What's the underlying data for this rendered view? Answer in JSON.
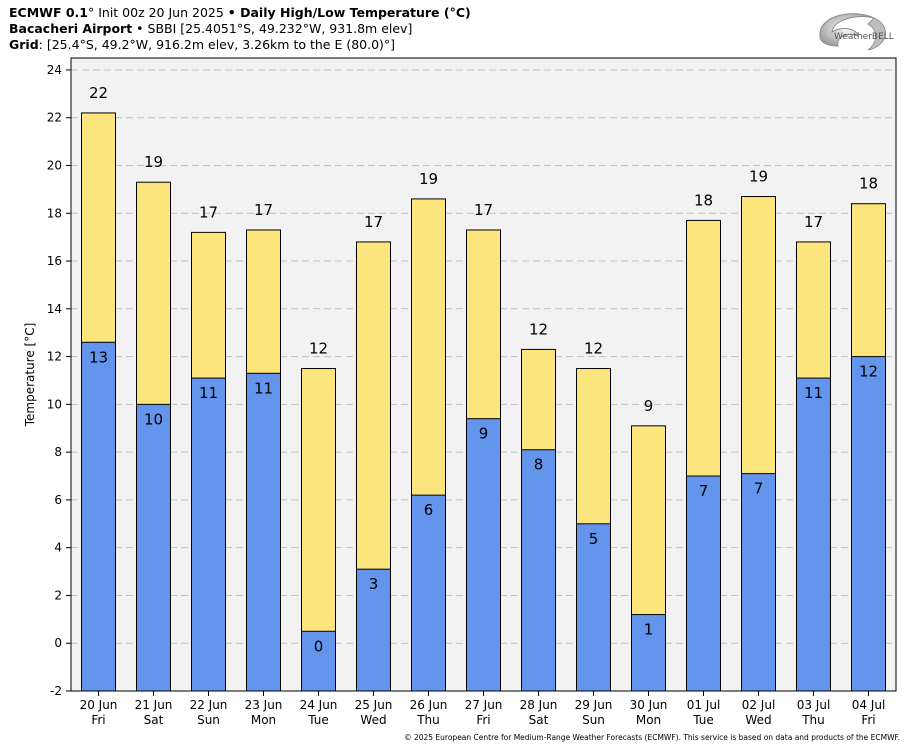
{
  "header": {
    "line1_bold_a": "ECMWF 0.1",
    "line1_rest": "° Init 00z 20 Jun 2025 ",
    "line1_bold_b": "• Daily High/Low Temperature (°C)",
    "line2_bold": "Bacacheri Airport",
    "line2_rest": " • SBBI [25.4051°S, 49.232°W, 931.8m elev]",
    "line3_bold": "Grid",
    "line3_rest": ": [25.4°S, 49.2°W, 916.2m elev, 3.26km to the E (80.0)°]"
  },
  "logo": {
    "text": "WeatherBELL",
    "icon": "weatherbell-swirl-logo"
  },
  "footer": {
    "text": "© 2025 European Centre for Medium-Range Weather Forecasts (ECMWF). This service is based on data and products of the ECMWF."
  },
  "colors": {
    "high": "#fde57e",
    "low": "#6495ed",
    "plot_bg": "#f2f2f2",
    "grid": "#c0c0c0"
  },
  "chart_data": {
    "type": "bar",
    "ylabel": "Temperature [°C]",
    "ylim": [
      -2,
      24.5
    ],
    "yticks": [
      -2,
      0,
      2,
      4,
      6,
      8,
      10,
      12,
      14,
      16,
      18,
      20,
      22,
      24
    ],
    "grid": true,
    "categories": [
      "20 Jun",
      "21 Jun",
      "22 Jun",
      "23 Jun",
      "24 Jun",
      "25 Jun",
      "26 Jun",
      "27 Jun",
      "28 Jun",
      "29 Jun",
      "30 Jun",
      "01 Jul",
      "02 Jul",
      "03 Jul",
      "04 Jul"
    ],
    "weekdays": [
      "Fri",
      "Sat",
      "Sun",
      "Mon",
      "Tue",
      "Wed",
      "Thu",
      "Fri",
      "Sat",
      "Sun",
      "Mon",
      "Tue",
      "Wed",
      "Thu",
      "Fri"
    ],
    "series": [
      {
        "name": "High",
        "values": [
          22.2,
          19.3,
          17.2,
          17.3,
          11.5,
          16.8,
          18.6,
          17.3,
          12.3,
          11.5,
          9.1,
          17.7,
          18.7,
          16.8,
          18.4
        ],
        "labels": [
          "22",
          "19",
          "17",
          "17",
          "12",
          "17",
          "19",
          "17",
          "12",
          "12",
          "9",
          "18",
          "19",
          "17",
          "18"
        ]
      },
      {
        "name": "Low",
        "values": [
          12.6,
          10.0,
          11.1,
          11.3,
          0.5,
          3.1,
          6.2,
          9.4,
          8.1,
          5.0,
          1.2,
          7.0,
          7.1,
          11.1,
          12.0
        ],
        "labels": [
          "13",
          "10",
          "11",
          "11",
          "0",
          "3",
          "6",
          "9",
          "8",
          "5",
          "1",
          "7",
          "7",
          "11",
          "12"
        ]
      }
    ]
  }
}
